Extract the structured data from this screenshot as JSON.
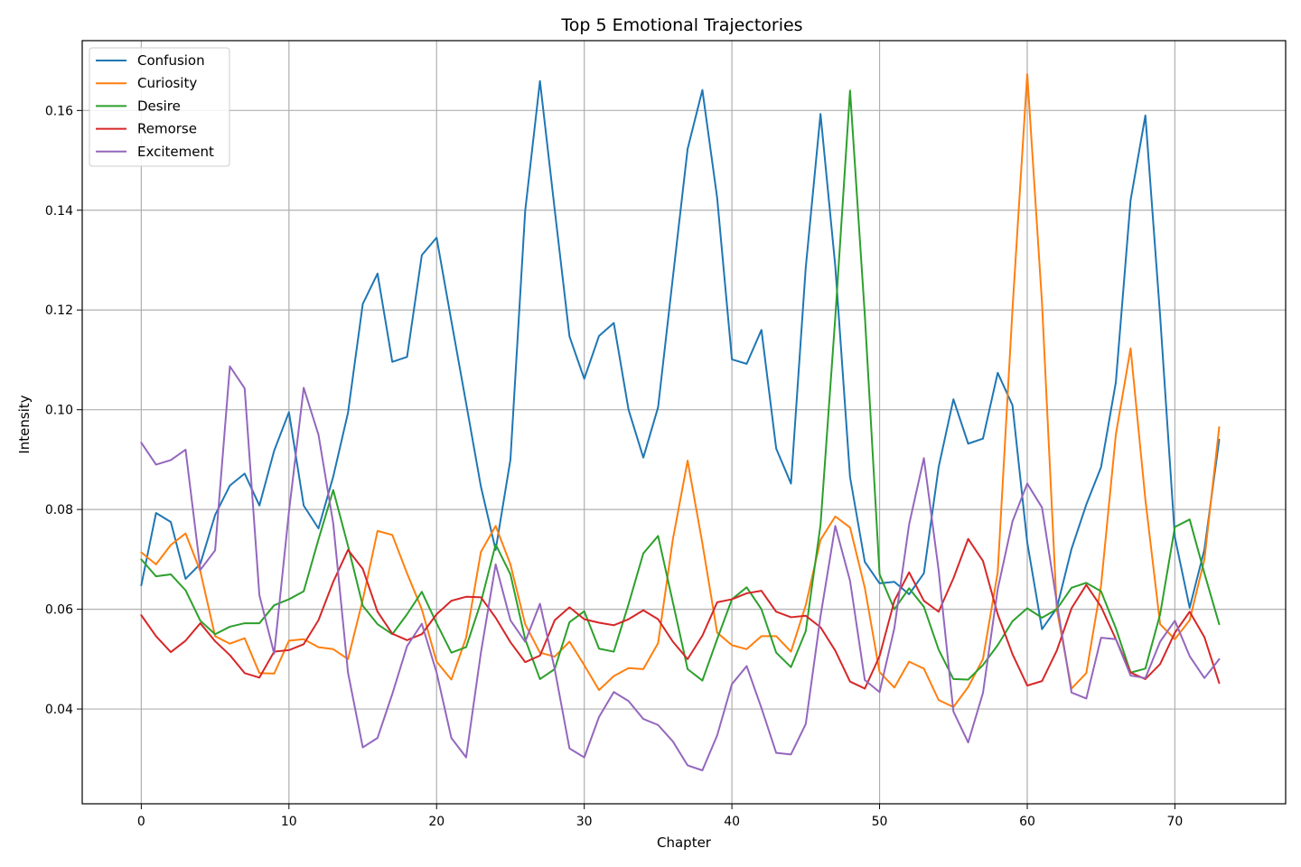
{
  "chart_data": {
    "type": "line",
    "title": "Top 5 Emotional Trajectories",
    "xlabel": "Chapter",
    "ylabel": "Intensity",
    "xlim": [
      -4,
      77.5
    ],
    "ylim": [
      0.021,
      0.174
    ],
    "xticks": [
      0,
      10,
      20,
      30,
      40,
      50,
      60,
      70
    ],
    "yticks": [
      0.04,
      0.06,
      0.08,
      0.1,
      0.12,
      0.14,
      0.16
    ],
    "xtick_labels": [
      "0",
      "10",
      "20",
      "30",
      "40",
      "50",
      "60",
      "70"
    ],
    "ytick_labels": [
      "0.04",
      "0.06",
      "0.08",
      "0.10",
      "0.12",
      "0.14",
      "0.16"
    ],
    "grid": true,
    "legend_position": "top-left",
    "x": [
      0,
      1,
      2,
      3,
      4,
      5,
      6,
      7,
      8,
      9,
      10,
      11,
      12,
      13,
      14,
      15,
      16,
      17,
      18,
      19,
      20,
      21,
      22,
      23,
      24,
      25,
      26,
      27,
      28,
      29,
      30,
      31,
      32,
      33,
      34,
      35,
      36,
      37,
      38,
      39,
      40,
      41,
      42,
      43,
      44,
      45,
      46,
      47,
      48,
      49,
      50,
      51,
      52,
      53,
      54,
      55,
      56,
      57,
      58,
      59,
      60,
      61,
      62,
      63,
      64,
      65,
      66,
      67,
      68,
      69,
      70,
      71,
      72,
      73
    ],
    "series": [
      {
        "name": "Confusion",
        "color": "#1f77b4",
        "values": [
          0.0648,
          0.0793,
          0.0775,
          0.0661,
          0.0691,
          0.0789,
          0.0848,
          0.0872,
          0.0808,
          0.0918,
          0.0995,
          0.0808,
          0.0762,
          0.0866,
          0.0994,
          0.1212,
          0.1273,
          0.1096,
          0.1106,
          0.131,
          0.1345,
          0.1178,
          0.1013,
          0.0846,
          0.0719,
          0.09,
          0.1399,
          0.1659,
          0.1401,
          0.1147,
          0.1062,
          0.1148,
          0.1174,
          0.1,
          0.0904,
          0.1005,
          0.1265,
          0.1523,
          0.1641,
          0.1425,
          0.1101,
          0.1092,
          0.116,
          0.0922,
          0.0852,
          0.1285,
          0.1593,
          0.1288,
          0.0865,
          0.0695,
          0.0652,
          0.0655,
          0.063,
          0.0672,
          0.0885,
          0.1021,
          0.0932,
          0.0942,
          0.1074,
          0.1009,
          0.0734,
          0.056,
          0.0602,
          0.0721,
          0.081,
          0.0885,
          0.1055,
          0.142,
          0.159,
          0.1188,
          0.0744,
          0.0603,
          0.072,
          0.094
        ]
      },
      {
        "name": "Curiosity",
        "color": "#ff7f0e",
        "values": [
          0.0714,
          0.069,
          0.0729,
          0.0752,
          0.0676,
          0.0546,
          0.0531,
          0.0542,
          0.0472,
          0.0471,
          0.0537,
          0.054,
          0.0524,
          0.052,
          0.05,
          0.0619,
          0.0757,
          0.0749,
          0.0672,
          0.06,
          0.0495,
          0.0459,
          0.0543,
          0.0715,
          0.0767,
          0.069,
          0.057,
          0.0513,
          0.0505,
          0.0535,
          0.0488,
          0.0438,
          0.0466,
          0.0482,
          0.048,
          0.0532,
          0.074,
          0.0898,
          0.0732,
          0.0553,
          0.0528,
          0.052,
          0.0546,
          0.0546,
          0.0515,
          0.0608,
          0.0739,
          0.0786,
          0.0764,
          0.0643,
          0.0474,
          0.0443,
          0.0495,
          0.0481,
          0.0418,
          0.0404,
          0.0444,
          0.05,
          0.0674,
          0.1201,
          0.1673,
          0.1214,
          0.06,
          0.0441,
          0.0472,
          0.0648,
          0.095,
          0.1123,
          0.082,
          0.057,
          0.054,
          0.0578,
          0.07,
          0.0965
        ]
      },
      {
        "name": "Desire",
        "color": "#2ca02c",
        "values": [
          0.07,
          0.0666,
          0.067,
          0.0638,
          0.0577,
          0.055,
          0.0565,
          0.0572,
          0.0572,
          0.0608,
          0.062,
          0.0636,
          0.074,
          0.0839,
          0.0727,
          0.0607,
          0.057,
          0.055,
          0.059,
          0.0635,
          0.0572,
          0.0513,
          0.0524,
          0.0614,
          0.073,
          0.067,
          0.054,
          0.046,
          0.048,
          0.0574,
          0.0596,
          0.0521,
          0.0515,
          0.061,
          0.0712,
          0.0747,
          0.0614,
          0.048,
          0.0457,
          0.054,
          0.062,
          0.0644,
          0.06,
          0.0513,
          0.0484,
          0.0556,
          0.0769,
          0.1185,
          0.164,
          0.119,
          0.067,
          0.06,
          0.0642,
          0.0605,
          0.0519,
          0.046,
          0.0459,
          0.0488,
          0.0528,
          0.0576,
          0.0602,
          0.0583,
          0.06,
          0.0643,
          0.0653,
          0.0636,
          0.0562,
          0.0473,
          0.0481,
          0.059,
          0.0765,
          0.078,
          0.0672,
          0.057
        ]
      },
      {
        "name": "Remorse",
        "color": "#d62728",
        "values": [
          0.0588,
          0.0546,
          0.0514,
          0.0537,
          0.0572,
          0.0536,
          0.0508,
          0.0472,
          0.0463,
          0.0515,
          0.0518,
          0.053,
          0.0578,
          0.0655,
          0.0719,
          0.0681,
          0.0595,
          0.0551,
          0.0538,
          0.055,
          0.059,
          0.0617,
          0.0625,
          0.0624,
          0.0583,
          0.0534,
          0.0494,
          0.0507,
          0.0578,
          0.0604,
          0.058,
          0.0573,
          0.0568,
          0.058,
          0.0598,
          0.058,
          0.0535,
          0.05,
          0.0547,
          0.0614,
          0.062,
          0.0632,
          0.0637,
          0.0595,
          0.0584,
          0.0587,
          0.0564,
          0.0517,
          0.0455,
          0.0441,
          0.0506,
          0.0617,
          0.0674,
          0.0617,
          0.0595,
          0.0662,
          0.0741,
          0.0697,
          0.059,
          0.051,
          0.0447,
          0.0456,
          0.0517,
          0.0602,
          0.0649,
          0.0605,
          0.054,
          0.0473,
          0.046,
          0.049,
          0.0553,
          0.0595,
          0.0544,
          0.0452
        ]
      },
      {
        "name": "Excitement",
        "color": "#9467bd",
        "values": [
          0.0934,
          0.089,
          0.0899,
          0.092,
          0.0679,
          0.0718,
          0.1087,
          0.1043,
          0.0628,
          0.0511,
          0.0795,
          0.1044,
          0.095,
          0.0772,
          0.0473,
          0.0323,
          0.0342,
          0.043,
          0.0526,
          0.0571,
          0.0473,
          0.0342,
          0.0303,
          0.0513,
          0.069,
          0.0578,
          0.0535,
          0.0611,
          0.048,
          0.0321,
          0.0303,
          0.0384,
          0.0434,
          0.0416,
          0.038,
          0.0368,
          0.0335,
          0.0287,
          0.0277,
          0.0347,
          0.045,
          0.0486,
          0.0402,
          0.0312,
          0.0309,
          0.037,
          0.0586,
          0.0767,
          0.0657,
          0.0458,
          0.0434,
          0.0562,
          0.077,
          0.0903,
          0.0678,
          0.0395,
          0.0333,
          0.0432,
          0.064,
          0.0776,
          0.0852,
          0.0804,
          0.0614,
          0.0433,
          0.0421,
          0.0543,
          0.054,
          0.0467,
          0.0462,
          0.0535,
          0.0577,
          0.0506,
          0.0462,
          0.05
        ]
      }
    ]
  }
}
